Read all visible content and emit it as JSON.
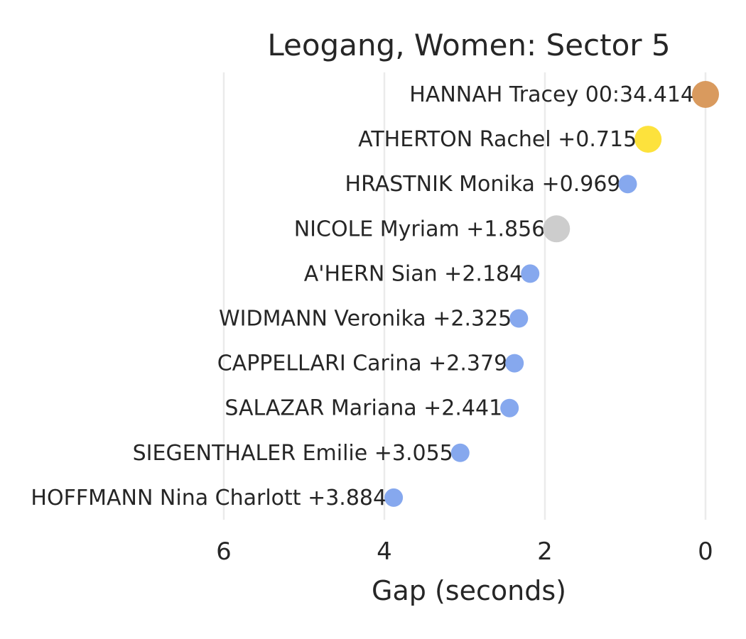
{
  "chart_data": {
    "type": "scatter",
    "title": "Leogang, Women: Sector 5",
    "xlabel": "Gap (seconds)",
    "ylabel": "",
    "xlim": [
      7.0,
      0.0
    ],
    "x_reversed": true,
    "xticks": [
      6,
      4,
      2,
      0
    ],
    "grid": "vertical",
    "colors": {
      "default": "#86a8ee",
      "gold": "#d99a5e",
      "yellow": "#fde23c",
      "gray": "#cdcdcd"
    },
    "points": [
      {
        "rider": "HANNAH Tracey",
        "gap": 0.0,
        "label": "HANNAH Tracey 00:34.414",
        "color": "#d99a5e",
        "size": "large"
      },
      {
        "rider": "ATHERTON Rachel",
        "gap": 0.715,
        "label": "ATHERTON Rachel +0.715",
        "color": "#fde23c",
        "size": "large"
      },
      {
        "rider": "HRASTNIK Monika",
        "gap": 0.969,
        "label": "HRASTNIK Monika +0.969",
        "color": "#86a8ee",
        "size": "small"
      },
      {
        "rider": "NICOLE Myriam",
        "gap": 1.856,
        "label": "NICOLE Myriam +1.856",
        "color": "#cdcdcd",
        "size": "large"
      },
      {
        "rider": "A'HERN Sian",
        "gap": 2.184,
        "label": "A'HERN Sian +2.184",
        "color": "#86a8ee",
        "size": "small"
      },
      {
        "rider": "WIDMANN Veronika",
        "gap": 2.325,
        "label": "WIDMANN Veronika +2.325",
        "color": "#86a8ee",
        "size": "small"
      },
      {
        "rider": "CAPPELLARI Carina",
        "gap": 2.379,
        "label": "CAPPELLARI Carina +2.379",
        "color": "#86a8ee",
        "size": "small"
      },
      {
        "rider": "SALAZAR Mariana",
        "gap": 2.441,
        "label": "SALAZAR Mariana +2.441",
        "color": "#86a8ee",
        "size": "small"
      },
      {
        "rider": "SIEGENTHALER Emilie",
        "gap": 3.055,
        "label": "SIEGENTHALER Emilie +3.055",
        "color": "#86a8ee",
        "size": "small"
      },
      {
        "rider": "HOFFMANN Nina Charlott",
        "gap": 3.884,
        "label": "HOFFMANN Nina Charlott +3.884",
        "color": "#86a8ee",
        "size": "small"
      }
    ]
  }
}
